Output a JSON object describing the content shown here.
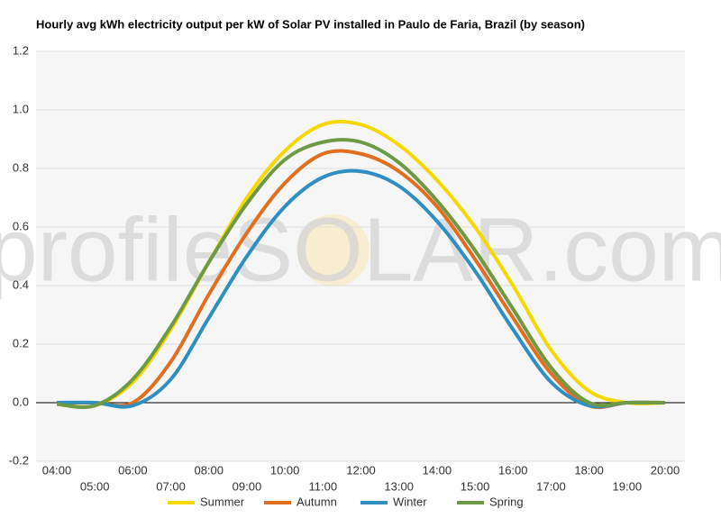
{
  "chart_data": {
    "type": "line",
    "title": "Hourly avg kWh electricity output per kW of Solar PV installed in Paulo de Faria, Brazil (by season)",
    "watermark": "profileSOLAR.com",
    "categories": [
      "04:00",
      "05:00",
      "06:00",
      "07:00",
      "08:00",
      "09:00",
      "10:00",
      "11:00",
      "12:00",
      "13:00",
      "14:00",
      "15:00",
      "16:00",
      "17:00",
      "18:00",
      "19:00",
      "20:00"
    ],
    "series": [
      {
        "name": "Summer",
        "color": "#f5d800",
        "values": [
          -0.005,
          -0.01,
          0.07,
          0.25,
          0.48,
          0.7,
          0.86,
          0.95,
          0.95,
          0.88,
          0.76,
          0.6,
          0.4,
          0.18,
          0.04,
          0.0,
          0.0
        ]
      },
      {
        "name": "Autumn",
        "color": "#e07020",
        "values": [
          0.0,
          0.0,
          0.0,
          0.14,
          0.37,
          0.58,
          0.75,
          0.85,
          0.85,
          0.79,
          0.67,
          0.49,
          0.29,
          0.1,
          -0.01,
          0.0,
          0.0
        ]
      },
      {
        "name": "Winter",
        "color": "#2e8fc0",
        "values": [
          0.0,
          0.0,
          -0.01,
          0.08,
          0.29,
          0.5,
          0.67,
          0.77,
          0.79,
          0.74,
          0.62,
          0.45,
          0.25,
          0.07,
          -0.01,
          0.0,
          0.0
        ]
      },
      {
        "name": "Spring",
        "color": "#6f9a45",
        "values": [
          -0.005,
          -0.01,
          0.08,
          0.26,
          0.48,
          0.68,
          0.83,
          0.89,
          0.89,
          0.82,
          0.69,
          0.52,
          0.32,
          0.12,
          0.0,
          0.0,
          0.0
        ]
      }
    ],
    "ylim": [
      -0.2,
      1.2
    ],
    "yticks": [
      -0.2,
      {
        "value": 0,
        "label": "0.0"
      },
      0.2,
      0.4,
      0.6,
      0.8,
      {
        "value": 1,
        "label": "1.0"
      },
      1.2
    ],
    "grid": true,
    "legend": "bottom"
  }
}
